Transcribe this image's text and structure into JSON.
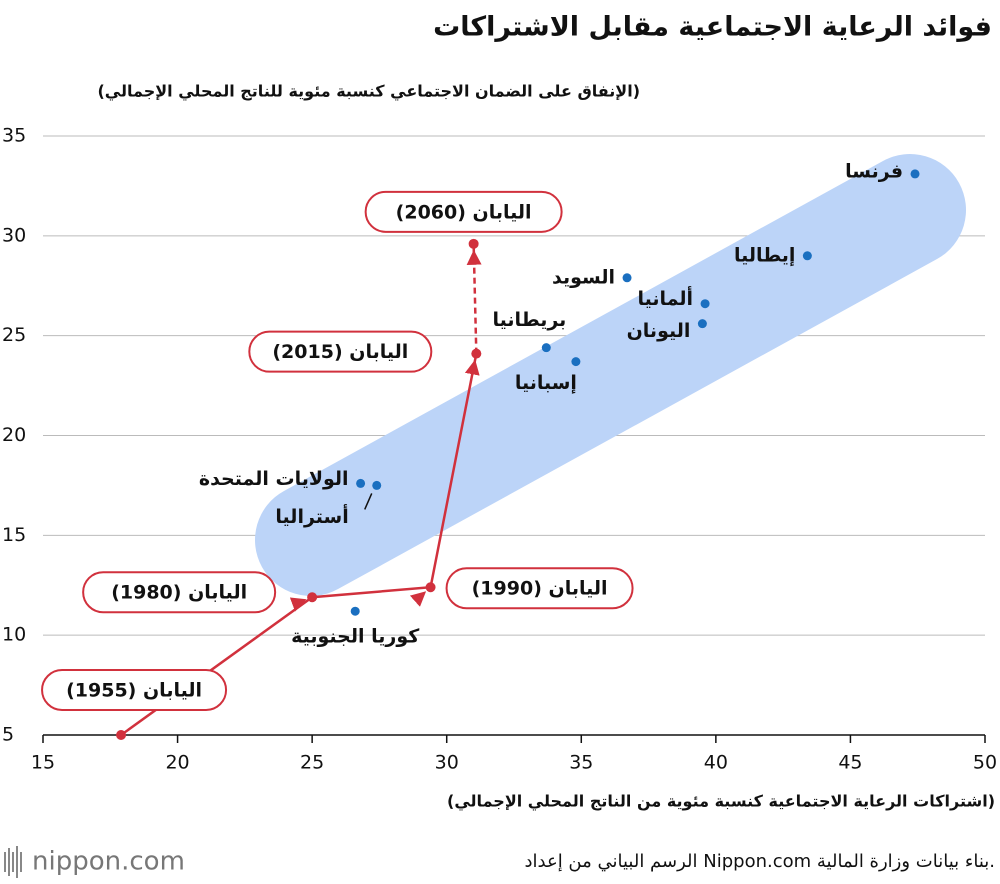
{
  "chart_data": {
    "type": "scatter",
    "title": "فوائد الرعاية الاجتماعية مقابل الاشتراكات",
    "y_label": "(الإنفاق على الضمان الاجتماعي كنسبة مئوية للناتج المحلي الإجمالي)",
    "x_label": "(اشتراكات الرعاية الاجتماعية كنسبة مئوية من الناتج المحلي الإجمالي)",
    "xlim": [
      15,
      50
    ],
    "ylim": [
      5,
      35
    ],
    "xticks": [
      15,
      20,
      25,
      30,
      35,
      40,
      45,
      50
    ],
    "yticks": [
      5,
      10,
      15,
      20,
      25,
      30,
      35
    ],
    "grid": true,
    "points": {
      "color": "#1a6fc0",
      "labels": [
        "فرنسا",
        "إيطاليا",
        "السويد",
        "ألمانيا",
        "اليونان",
        "بريطانيا",
        "إسبانيا",
        "الولايات المتحدة",
        "أستراليا",
        "كوريا الجنوبية"
      ],
      "x": [
        47.4,
        43.4,
        36.7,
        39.6,
        39.5,
        33.7,
        34.8,
        26.8,
        27.4,
        26.6
      ],
      "y": [
        33.1,
        29.0,
        27.9,
        26.6,
        25.6,
        24.4,
        23.7,
        17.6,
        17.5,
        11.2
      ]
    },
    "japan": {
      "color": "#d1313d",
      "labels": [
        "اليابان (1955)",
        "اليابان (1980)",
        "اليابان (1990)",
        "اليابان (2015)",
        "اليابان (2060)"
      ],
      "x": [
        17.9,
        25.0,
        29.4,
        31.1,
        31.0
      ],
      "y": [
        5.0,
        11.9,
        12.4,
        24.1,
        29.6
      ]
    },
    "source": "الرسم البياني من إعداد Nippon.com بناء بيانات وزارة المالية.",
    "logo": "nippon.com"
  }
}
